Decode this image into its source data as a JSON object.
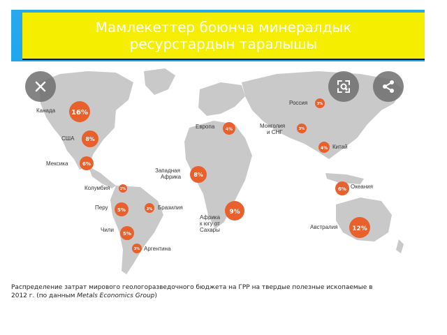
{
  "slide": {
    "title": "Мамлекеттер боюнча минералдык ресурстардын таралышы"
  },
  "map": {
    "marker_color": "#e8602c",
    "land_color": "#c9c9c9",
    "labels": {
      "canada": "Канада",
      "usa": "США",
      "mexico": "Мексика",
      "colombia": "Колумбия",
      "peru": "Перу",
      "brazil": "Бразилия",
      "chile": "Чили",
      "argentina": "Аргентина",
      "west_africa_1": "Западная",
      "west_africa_2": "Африка",
      "europe": "Европа",
      "russia": "Россия",
      "mongolia_1": "Монголия",
      "mongolia_2": "и СНГ",
      "china": "Китай",
      "africa_south_1": "Африка",
      "africa_south_2": "к югу от",
      "africa_south_3": "Сахары",
      "oceania": "Океания",
      "australia": "Австралия"
    },
    "values": {
      "canada": "16%",
      "usa": "8%",
      "mexico": "6%",
      "colombia": "2%",
      "peru": "5%",
      "brazil": "3%",
      "chile": "5%",
      "argentina": "3%",
      "west_africa": "8%",
      "europe": "4%",
      "russia": "3%",
      "mongolia": "3%",
      "china": "4%",
      "africa_south": "9%",
      "oceania": "6%",
      "australia": "12%"
    }
  },
  "caption": {
    "line1": "Распределение затрат мирового геологоразведочного бюджета на ГРР на твердые полезные ископаемые в",
    "line2_prefix": "2012 г. (по данным ",
    "source": "Metals Economics Group",
    "line2_suffix": ")"
  },
  "controls": {
    "close_icon": "close-icon",
    "lens_icon": "visual-search-icon",
    "share_icon": "share-icon"
  }
}
